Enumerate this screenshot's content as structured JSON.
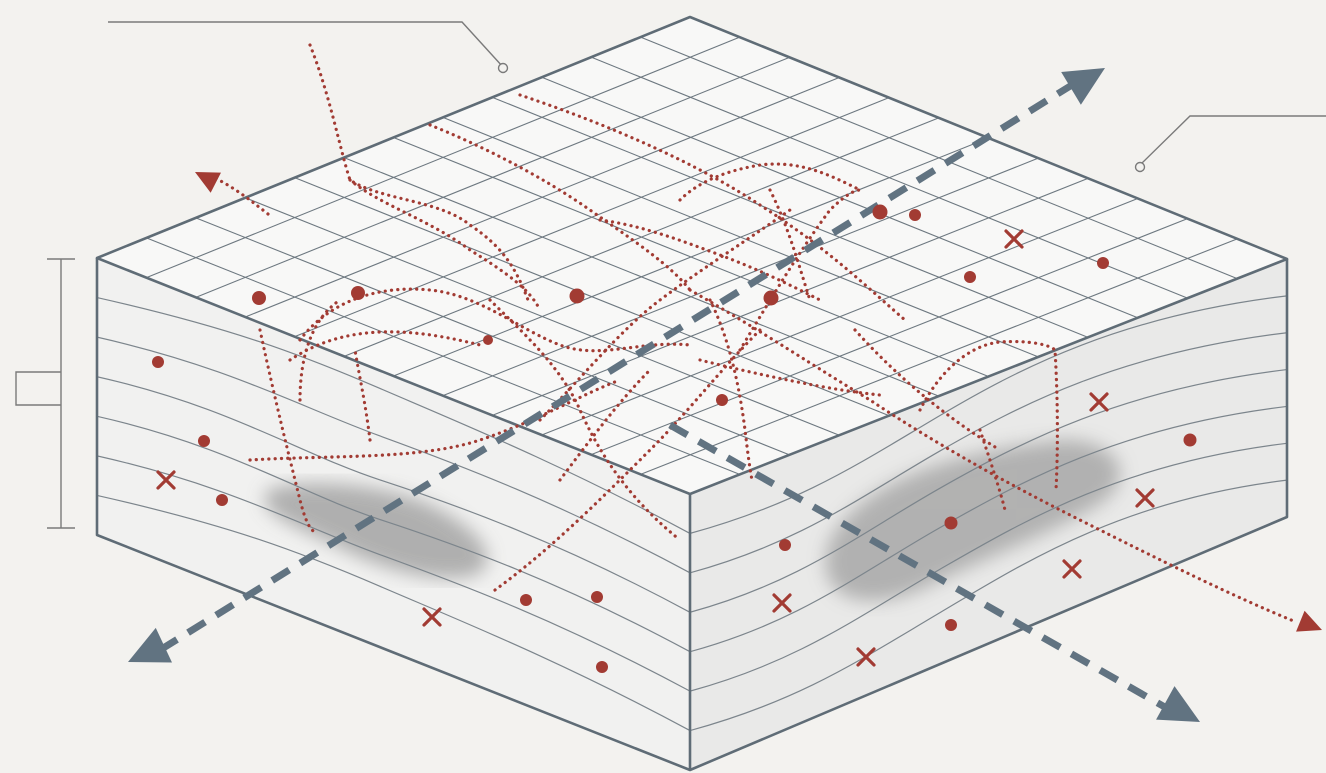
{
  "colors": {
    "background": "#f3f2ef",
    "block_top": "#f8f8f7",
    "block_left_face": "#f1f1f0",
    "block_right_face": "#e9e9e8",
    "edge": "#5f6c76",
    "grid_line": "#6d7880",
    "strata_line": "#7c858c",
    "shadow": "#9a9a9a",
    "path_red": "#a23b33",
    "flow_dash": "#617381",
    "callout": "#7a7a7a"
  },
  "icons": {
    "point_marker": "filled-dot",
    "cross_marker": "x-mark",
    "red_arrowhead": "triangle",
    "blue_arrowhead": "triangle"
  },
  "diagram": {
    "block": {
      "grid_cells_per_side": 12,
      "strata_layers": 7
    },
    "callouts": {
      "top_left": "",
      "top_right": "",
      "side_bracket": ""
    }
  }
}
